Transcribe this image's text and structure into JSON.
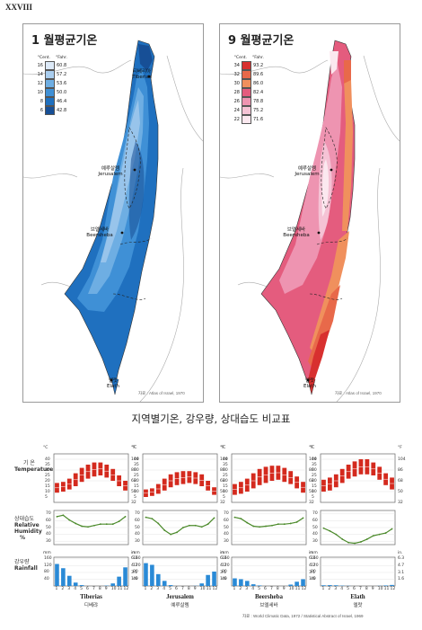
{
  "page": {
    "number": "XXVIII"
  },
  "maps": [
    {
      "id": "jan",
      "title": "1 월평균기온",
      "unit_c": "°Cent.",
      "unit_f": "°Fahr.",
      "legend": [
        {
          "c": "16",
          "f": "60.8",
          "color": "#dce9f7"
        },
        {
          "c": "14",
          "f": "57.2",
          "color": "#a9cdee"
        },
        {
          "c": "12",
          "f": "53.6",
          "color": "#6eaee3"
        },
        {
          "c": "10",
          "f": "50.0",
          "color": "#3f90d6"
        },
        {
          "c": "8",
          "f": "46.4",
          "color": "#1f70bf"
        },
        {
          "c": "6",
          "f": "42.8",
          "color": "#174f96"
        }
      ],
      "cities": {
        "tiberias": {
          "ko": "티베리아",
          "en": "Tiberias"
        },
        "jerusalem": {
          "ko": "예루살렘",
          "en": "Jerusalem"
        },
        "beersheba": {
          "ko": "브엘세바",
          "en": "Beersheba"
        },
        "elath": {
          "ko": "엘랏",
          "en": "Elath"
        }
      },
      "source": "자료 : Atlas of Israel, 1970"
    },
    {
      "id": "sep",
      "title": "9 월평균기온",
      "unit_c": "°Cent.",
      "unit_f": "°Fahr.",
      "legend": [
        {
          "c": "34",
          "f": "93.2",
          "color": "#d8302f"
        },
        {
          "c": "32",
          "f": "89.6",
          "color": "#e8694a"
        },
        {
          "c": "30",
          "f": "86.0",
          "color": "#f0905d"
        },
        {
          "c": "28",
          "f": "82.4",
          "color": "#e45c7e"
        },
        {
          "c": "26",
          "f": "78.8",
          "color": "#ee94b1"
        },
        {
          "c": "24",
          "f": "75.2",
          "color": "#f5c3d5"
        },
        {
          "c": "22",
          "f": "71.6",
          "color": "#fbe8ef"
        }
      ],
      "cities": {
        "tiberias": {
          "ko": "",
          "en": ""
        },
        "jerusalem": {
          "ko": "예루살렘",
          "en": "Jerusalem"
        },
        "beersheba": {
          "ko": "브엘세바",
          "en": "Beersheba"
        },
        "elath": {
          "ko": "엘랏",
          "en": "Elath"
        }
      },
      "source": "자료 : Atlas of Israel, 1970"
    }
  ],
  "comparison": {
    "title": "지역별기온,  강우량,  상대습도 비교표",
    "rows": {
      "temperature": {
        "ko": "기 온",
        "en": "Temperature"
      },
      "humidity": {
        "ko": "상대습도",
        "en1": "Relative",
        "en2": "Humidity",
        "unit": "%"
      },
      "rainfall": {
        "ko": "강우량",
        "en": "Rainfall"
      }
    },
    "axis": {
      "temp_c_unit": "°C",
      "temp_f_unit": "°F",
      "temp_c_ticks": [
        "40",
        "35",
        "30",
        "25",
        "20",
        "15",
        "10",
        "5"
      ],
      "temp_f_ticks": [
        "104",
        "86",
        "68",
        "50",
        "32"
      ],
      "hum_ticks": [
        "70",
        "60",
        "50",
        "40",
        "30"
      ],
      "rain_mm_unit": "mm",
      "rain_in_unit": "in.",
      "rain_mm_ticks": [
        "160",
        "120",
        "80",
        "40"
      ],
      "rain_in_ticks": [
        "6.3",
        "4.7",
        "3.1",
        "1.6"
      ],
      "months": [
        "1",
        "2",
        "3",
        "4",
        "5",
        "6",
        "7",
        "8",
        "9",
        "10",
        "11",
        "12"
      ]
    },
    "stations": [
      {
        "en": "Tiberias",
        "ko": "디베랴",
        "temp_min": [
          9,
          10,
          12,
          15,
          19,
          22,
          24,
          25,
          23,
          20,
          15,
          11
        ],
        "temp_max": [
          18,
          19,
          22,
          27,
          32,
          35,
          37,
          37,
          35,
          31,
          25,
          20
        ],
        "humidity": [
          66,
          68,
          61,
          56,
          52,
          51,
          53,
          55,
          55,
          55,
          59,
          66
        ],
        "rain": [
          130,
          105,
          60,
          20,
          5,
          0,
          0,
          0,
          2,
          15,
          55,
          110
        ]
      },
      {
        "en": "Jerusalem",
        "ko": "예루살렘",
        "temp_min": [
          5,
          6,
          8,
          11,
          14,
          16,
          17,
          18,
          17,
          15,
          11,
          7
        ],
        "temp_max": [
          12,
          13,
          17,
          22,
          26,
          28,
          29,
          29,
          28,
          26,
          20,
          14
        ],
        "humidity": [
          65,
          63,
          56,
          46,
          40,
          43,
          50,
          53,
          53,
          51,
          55,
          64
        ],
        "rain": [
          135,
          125,
          70,
          30,
          5,
          0,
          0,
          0,
          1,
          15,
          65,
          85
        ]
      },
      {
        "en": "Beersheba",
        "ko": "브엘세바",
        "temp_min": [
          7,
          8,
          10,
          13,
          16,
          18,
          20,
          21,
          19,
          17,
          13,
          9
        ],
        "temp_max": [
          17,
          19,
          22,
          27,
          31,
          33,
          34,
          34,
          32,
          29,
          24,
          19
        ],
        "humidity": [
          65,
          63,
          57,
          52,
          51,
          52,
          53,
          55,
          55,
          56,
          58,
          64
        ],
        "rain": [
          45,
          40,
          30,
          10,
          3,
          0,
          0,
          0,
          0,
          8,
          25,
          40
        ]
      },
      {
        "en": "Elath",
        "ko": "엘랏",
        "temp_min": [
          10,
          11,
          14,
          18,
          22,
          24,
          26,
          26,
          25,
          21,
          16,
          12
        ],
        "temp_max": [
          21,
          23,
          26,
          31,
          35,
          38,
          40,
          40,
          37,
          33,
          27,
          23
        ],
        "humidity": [
          49,
          45,
          40,
          33,
          28,
          27,
          29,
          33,
          38,
          40,
          42,
          48
        ],
        "rain": [
          4,
          5,
          4,
          2,
          1,
          0,
          0,
          0,
          0,
          1,
          3,
          6
        ]
      }
    ],
    "source": "자료 : World Climatic Data, 1972 / Statistical Abstract of Israel, 1969"
  }
}
